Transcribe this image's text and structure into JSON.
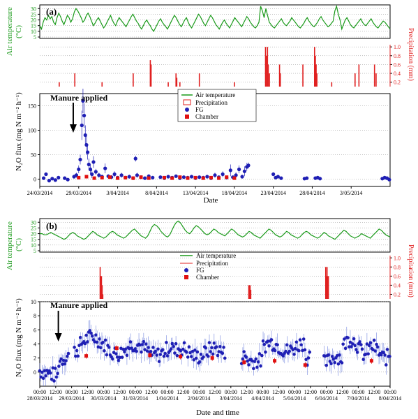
{
  "colors": {
    "air_temperature": "#1a9a1a",
    "precipitation": "#e02020",
    "fg": "#1f1fb4",
    "chamber": "#e01010"
  },
  "chart_data": [
    {
      "panel": "(a)",
      "type": "line",
      "role": "air-temperature",
      "ylabel_line1": "Air temperature",
      "ylabel_line2": "(°C)",
      "yticks": [
        5,
        10,
        15,
        20,
        25,
        30
      ],
      "ylim": [
        5,
        32
      ],
      "x_domain_days": [
        0,
        45
      ],
      "grid": true,
      "values": [
        15,
        12,
        18,
        22,
        20,
        24,
        21,
        23,
        18,
        16,
        22,
        26,
        23,
        19,
        16,
        20,
        24,
        22,
        18,
        21,
        27,
        30,
        28,
        25,
        22,
        18,
        20,
        24,
        26,
        23,
        19,
        15,
        17,
        20,
        22,
        19,
        16,
        13,
        15,
        18,
        21,
        24,
        20,
        17,
        15,
        19,
        22,
        20,
        18,
        16,
        14,
        17,
        20,
        23,
        25,
        22,
        19,
        17,
        14,
        12,
        15,
        18,
        20,
        17,
        15,
        12,
        10,
        13,
        16,
        19,
        21,
        18,
        16,
        14,
        12,
        15,
        18,
        21,
        24,
        22,
        19,
        16,
        14,
        17,
        20,
        22,
        18,
        15,
        13,
        16,
        19,
        22,
        25,
        23,
        20,
        17,
        15,
        18,
        21,
        24,
        22,
        19,
        16,
        14,
        12,
        15,
        18,
        20,
        17,
        15,
        13,
        16,
        19,
        22,
        20,
        18,
        16,
        14,
        17,
        20,
        23,
        21,
        18,
        16,
        14,
        13,
        15,
        18,
        32,
        28,
        22,
        30,
        24,
        18,
        16,
        14,
        13,
        15,
        17,
        19,
        21,
        18,
        16,
        15,
        17,
        19,
        22,
        20,
        18,
        16,
        14,
        13,
        15,
        17,
        20,
        22,
        19,
        17,
        15,
        14,
        16,
        18,
        21,
        23,
        20,
        18,
        16,
        14,
        15,
        17,
        19,
        28,
        32,
        25,
        20,
        12,
        16,
        20,
        22,
        19,
        16,
        14,
        13,
        15,
        17,
        19,
        21,
        18,
        16,
        15,
        17,
        19,
        21,
        18,
        16,
        14,
        13,
        15,
        17,
        19,
        18,
        16,
        14,
        12
      ]
    },
    {
      "panel": "(a)",
      "type": "bar",
      "role": "precipitation",
      "ylabel": "Precipitation (mm)",
      "yticks": [
        0.2,
        0.4,
        0.6,
        0.8,
        1.0
      ],
      "ylim": [
        0.1,
        1.05
      ],
      "x_domain_days": [
        0,
        45
      ],
      "grid": true,
      "events": [
        {
          "x": 2.5,
          "y": 0.2
        },
        {
          "x": 4.5,
          "y": 0.4
        },
        {
          "x": 8.0,
          "y": 0.2
        },
        {
          "x": 12.0,
          "y": 0.4
        },
        {
          "x": 14.2,
          "y": 0.7
        },
        {
          "x": 14.3,
          "y": 0.6
        },
        {
          "x": 16.5,
          "y": 0.2
        },
        {
          "x": 17.5,
          "y": 0.4
        },
        {
          "x": 17.6,
          "y": 0.3
        },
        {
          "x": 18.0,
          "y": 0.2
        },
        {
          "x": 20.5,
          "y": 0.4
        },
        {
          "x": 25.0,
          "y": 0.2
        },
        {
          "x": 29.0,
          "y": 1.0
        },
        {
          "x": 29.1,
          "y": 0.8
        },
        {
          "x": 29.25,
          "y": 1.0
        },
        {
          "x": 29.35,
          "y": 0.6
        },
        {
          "x": 29.5,
          "y": 0.4
        },
        {
          "x": 30.8,
          "y": 0.6
        },
        {
          "x": 30.9,
          "y": 0.4
        },
        {
          "x": 33.8,
          "y": 0.6
        },
        {
          "x": 35.3,
          "y": 1.0
        },
        {
          "x": 35.4,
          "y": 0.8
        },
        {
          "x": 35.5,
          "y": 0.6
        },
        {
          "x": 35.6,
          "y": 0.4
        },
        {
          "x": 37.5,
          "y": 0.2
        },
        {
          "x": 40.5,
          "y": 0.4
        },
        {
          "x": 41.0,
          "y": 0.6
        },
        {
          "x": 43.0,
          "y": 0.6
        },
        {
          "x": 43.2,
          "y": 0.4
        }
      ]
    },
    {
      "panel": "(a)",
      "type": "scatter",
      "role": "n2o-flux",
      "title_panel": "(a)",
      "annotation": "Manure applied",
      "annotation_x": 4.3,
      "xlabel": "Date",
      "ylabel": "N₂O flux (mg N m⁻² h⁻¹)",
      "xticks": [
        0,
        5,
        10,
        15,
        20,
        25,
        30,
        35,
        40
      ],
      "xticklabels": [
        "24/03/2014",
        "29/03/2014",
        "3/04/2014",
        "8/04/2014",
        "13/04/2014",
        "18/04/2014",
        "23/04/2014",
        "28/04/2014",
        "3/05/2014"
      ],
      "yticks": [
        0,
        50,
        100,
        150
      ],
      "ylim": [
        -15,
        175
      ],
      "x_domain_days": [
        0,
        45
      ],
      "grid": true,
      "legend": {
        "placement": "top-center",
        "entries": [
          "Air temperature",
          "Precipitation",
          "FG",
          "Chamber"
        ]
      },
      "fg_points": [
        {
          "x": 0.5,
          "y": 2,
          "e": 3
        },
        {
          "x": 0.8,
          "y": 10,
          "e": 3
        },
        {
          "x": 1.2,
          "y": -3,
          "e": 2
        },
        {
          "x": 1.6,
          "y": 1,
          "e": 2
        },
        {
          "x": 2.0,
          "y": -2,
          "e": 2
        },
        {
          "x": 2.4,
          "y": 3,
          "e": 2
        },
        {
          "x": 3.2,
          "y": 2,
          "e": 2
        },
        {
          "x": 3.6,
          "y": -1,
          "e": 2
        },
        {
          "x": 4.4,
          "y": 5,
          "e": 4
        },
        {
          "x": 4.7,
          "y": 8,
          "e": 5
        },
        {
          "x": 5.0,
          "y": 20,
          "e": 8
        },
        {
          "x": 5.2,
          "y": 40,
          "e": 10
        },
        {
          "x": 5.4,
          "y": 110,
          "e": 30
        },
        {
          "x": 5.55,
          "y": 160,
          "e": 25
        },
        {
          "x": 5.7,
          "y": 130,
          "e": 25
        },
        {
          "x": 5.85,
          "y": 90,
          "e": 20
        },
        {
          "x": 6.0,
          "y": 70,
          "e": 20
        },
        {
          "x": 6.15,
          "y": 55,
          "e": 15
        },
        {
          "x": 6.3,
          "y": 30,
          "e": 12
        },
        {
          "x": 6.5,
          "y": 20,
          "e": 10
        },
        {
          "x": 6.7,
          "y": 10,
          "e": 8
        },
        {
          "x": 6.9,
          "y": 35,
          "e": 12
        },
        {
          "x": 7.2,
          "y": 15,
          "e": 6
        },
        {
          "x": 7.6,
          "y": 8,
          "e": 5
        },
        {
          "x": 8.0,
          "y": 5,
          "e": 4
        },
        {
          "x": 8.4,
          "y": 22,
          "e": 10
        },
        {
          "x": 8.8,
          "y": 6,
          "e": 4
        },
        {
          "x": 9.2,
          "y": 4,
          "e": 4
        },
        {
          "x": 9.6,
          "y": 10,
          "e": 6
        },
        {
          "x": 10.0,
          "y": 3,
          "e": 3
        },
        {
          "x": 10.5,
          "y": 8,
          "e": 5
        },
        {
          "x": 11.0,
          "y": 3,
          "e": 3
        },
        {
          "x": 11.5,
          "y": 5,
          "e": 4
        },
        {
          "x": 12.0,
          "y": 2,
          "e": 3
        },
        {
          "x": 12.3,
          "y": 42,
          "e": 6
        },
        {
          "x": 12.5,
          "y": 8,
          "e": 5
        },
        {
          "x": 13.0,
          "y": 4,
          "e": 3
        },
        {
          "x": 13.5,
          "y": 2,
          "e": 3
        },
        {
          "x": 14.0,
          "y": 6,
          "e": 4
        },
        {
          "x": 14.5,
          "y": 3,
          "e": 3
        },
        {
          "x": 15.5,
          "y": 4,
          "e": 3
        },
        {
          "x": 16.0,
          "y": 2,
          "e": 3
        },
        {
          "x": 16.5,
          "y": 5,
          "e": 3
        },
        {
          "x": 17.0,
          "y": 3,
          "e": 3
        },
        {
          "x": 17.5,
          "y": 6,
          "e": 3
        },
        {
          "x": 18.0,
          "y": 2,
          "e": 3
        },
        {
          "x": 18.5,
          "y": 4,
          "e": 3
        },
        {
          "x": 19.0,
          "y": 3,
          "e": 3
        },
        {
          "x": 19.5,
          "y": 5,
          "e": 3
        },
        {
          "x": 20.0,
          "y": 2,
          "e": 3
        },
        {
          "x": 20.5,
          "y": 4,
          "e": 3
        },
        {
          "x": 21.0,
          "y": 3,
          "e": 3
        },
        {
          "x": 21.5,
          "y": 5,
          "e": 3
        },
        {
          "x": 22.0,
          "y": 2,
          "e": 3
        },
        {
          "x": 22.5,
          "y": 8,
          "e": 5
        },
        {
          "x": 23.0,
          "y": 4,
          "e": 3
        },
        {
          "x": 23.5,
          "y": 10,
          "e": 6
        },
        {
          "x": 24.0,
          "y": 3,
          "e": 3
        },
        {
          "x": 24.5,
          "y": 18,
          "e": 12
        },
        {
          "x": 24.8,
          "y": 4,
          "e": 3
        },
        {
          "x": 25.2,
          "y": 8,
          "e": 6
        },
        {
          "x": 25.6,
          "y": 20,
          "e": 8
        },
        {
          "x": 26.0,
          "y": 5,
          "e": 4
        },
        {
          "x": 26.3,
          "y": 16,
          "e": 10
        },
        {
          "x": 26.6,
          "y": 25,
          "e": 8
        },
        {
          "x": 26.8,
          "y": 28,
          "e": 6
        },
        {
          "x": 30.0,
          "y": 10,
          "e": 4
        },
        {
          "x": 30.3,
          "y": 3,
          "e": 3
        },
        {
          "x": 30.6,
          "y": 5,
          "e": 3
        },
        {
          "x": 31.0,
          "y": 2,
          "e": 2
        },
        {
          "x": 34.0,
          "y": 1,
          "e": 2
        },
        {
          "x": 34.3,
          "y": 2,
          "e": 2
        },
        {
          "x": 35.4,
          "y": 2,
          "e": 2
        },
        {
          "x": 35.7,
          "y": 3,
          "e": 2
        },
        {
          "x": 36.0,
          "y": 1,
          "e": 2
        },
        {
          "x": 44.0,
          "y": 1,
          "e": 2
        },
        {
          "x": 44.3,
          "y": 3,
          "e": 2
        },
        {
          "x": 44.6,
          "y": 2,
          "e": 2
        },
        {
          "x": 44.9,
          "y": -1,
          "e": 2
        }
      ],
      "chamber_points": [
        {
          "x": 5.0,
          "y": 3
        },
        {
          "x": 6.0,
          "y": 5
        },
        {
          "x": 7.0,
          "y": 2
        },
        {
          "x": 8.0,
          "y": 3
        },
        {
          "x": 9.0,
          "y": 4
        },
        {
          "x": 10.0,
          "y": 2
        },
        {
          "x": 11.0,
          "y": 3
        },
        {
          "x": 12.0,
          "y": 2
        },
        {
          "x": 13.0,
          "y": 4
        },
        {
          "x": 14.0,
          "y": 2
        },
        {
          "x": 16.0,
          "y": 3
        },
        {
          "x": 17.0,
          "y": 2
        },
        {
          "x": 18.0,
          "y": 4
        },
        {
          "x": 19.0,
          "y": 2
        },
        {
          "x": 20.0,
          "y": 3
        },
        {
          "x": 21.0,
          "y": 2
        },
        {
          "x": 22.0,
          "y": 3
        },
        {
          "x": 23.0,
          "y": 2
        },
        {
          "x": 24.0,
          "y": 4
        },
        {
          "x": 25.0,
          "y": 2
        }
      ]
    },
    {
      "panel": "(b)",
      "type": "line",
      "role": "air-temperature",
      "ylabel_line1": "Air temperature",
      "ylabel_line2": "(°C)",
      "yticks": [
        5,
        10,
        15,
        20,
        25,
        30
      ],
      "ylim": [
        5,
        32
      ],
      "x_domain_hours": [
        0,
        264
      ],
      "grid": true,
      "values": [
        20,
        20,
        19,
        19,
        20,
        21,
        20,
        19,
        18,
        17,
        16,
        15,
        16,
        18,
        20,
        21,
        20,
        18,
        17,
        16,
        15,
        16,
        18,
        20,
        22,
        21,
        19,
        18,
        17,
        16,
        17,
        19,
        21,
        22,
        21,
        19,
        18,
        17,
        16,
        17,
        19,
        21,
        23,
        24,
        22,
        20,
        18,
        17,
        16,
        18,
        22,
        26,
        28,
        27,
        25,
        22,
        20,
        18,
        17,
        19,
        23,
        27,
        30,
        31,
        29,
        26,
        23,
        21,
        20,
        22,
        25,
        27,
        26,
        24,
        22,
        20,
        19,
        20,
        22,
        24,
        23,
        21,
        20,
        19,
        18,
        20,
        22,
        24,
        23,
        21,
        19,
        18,
        17,
        18,
        20,
        22,
        21,
        19,
        18,
        17,
        16,
        18,
        20,
        22,
        24,
        23,
        21,
        19,
        18,
        17,
        18,
        20,
        22,
        21,
        19,
        18,
        17,
        16,
        17,
        19,
        21,
        22,
        21,
        19,
        18,
        17,
        16,
        17,
        19,
        21,
        20,
        18,
        17,
        16,
        15,
        17,
        19,
        21,
        23,
        22,
        20,
        18,
        17,
        16,
        17,
        18,
        20,
        19,
        18,
        17,
        16,
        18,
        20,
        22,
        24,
        23,
        21,
        19,
        18,
        17
      ]
    },
    {
      "panel": "(b)",
      "type": "bar",
      "role": "precipitation",
      "ylabel": "Precipitation (mm)",
      "yticks": [
        0.2,
        0.4,
        0.6,
        0.8,
        1.0
      ],
      "ylim": [
        0.1,
        1.05
      ],
      "x_domain_hours": [
        0,
        264
      ],
      "grid": true,
      "events": [
        {
          "x": 45.5,
          "y": 0.8
        },
        {
          "x": 46.0,
          "y": 0.6
        },
        {
          "x": 46.5,
          "y": 0.6
        },
        {
          "x": 47.0,
          "y": 0.4
        },
        {
          "x": 47.5,
          "y": 0.2
        },
        {
          "x": 157.5,
          "y": 0.4
        },
        {
          "x": 158.0,
          "y": 0.4
        },
        {
          "x": 158.5,
          "y": 0.4
        },
        {
          "x": 159.0,
          "y": 0.3
        },
        {
          "x": 215.5,
          "y": 0.8
        },
        {
          "x": 216.0,
          "y": 0.6
        },
        {
          "x": 216.5,
          "y": 0.8
        },
        {
          "x": 217.0,
          "y": 0.6
        },
        {
          "x": 217.5,
          "y": 0.6
        }
      ]
    },
    {
      "panel": "(b)",
      "type": "scatter",
      "role": "n2o-flux",
      "title_panel": "(b)",
      "annotation": "Manure applied",
      "annotation_x": 14,
      "xlabel": "Date and time",
      "ylabel": "N₂O flux (mg N m⁻² h⁻¹)",
      "xticks": [
        0,
        12,
        24,
        36,
        48,
        60,
        72,
        84,
        96,
        108,
        120,
        132,
        144,
        156,
        168,
        180,
        192,
        204,
        216,
        228,
        240,
        252,
        264
      ],
      "xticklabels_time": [
        "00:00",
        "12:00",
        "00:00",
        "12:00",
        "00:00",
        "12:00",
        "00:00",
        "12:00",
        "00:00",
        "12:00",
        "00:00",
        "12:00",
        "00:00",
        "12:00",
        "00:00",
        "12:00",
        "00:00",
        "12:00",
        "00:00",
        "12:00",
        "00:00",
        "12:00",
        "00:00"
      ],
      "xticklabels_date": [
        "28/03/2014",
        "",
        "29/03/2014",
        "",
        "30/03/2014",
        "",
        "31/03/2014",
        "",
        "1/04/2014",
        "",
        "2/04/2014",
        "",
        "3/04/2014",
        "",
        "4/04/2014",
        "",
        "5/04/2014",
        "",
        "6/04/2014",
        "",
        "7/04/2014",
        "",
        "8/04/2014"
      ],
      "yticks": [
        0,
        2,
        4,
        6,
        8,
        10
      ],
      "ylim": [
        -2,
        10
      ],
      "x_domain_hours": [
        0,
        264
      ],
      "grid": true,
      "legend": {
        "placement": "top-left",
        "entries": [
          "Air temperature",
          "Precipitation",
          "FG",
          "Chamber"
        ]
      },
      "chamber_points": [
        {
          "x": 35,
          "y": 2.3
        },
        {
          "x": 58,
          "y": 3.4
        },
        {
          "x": 83,
          "y": 2.4
        },
        {
          "x": 106,
          "y": 2.2
        },
        {
          "x": 130,
          "y": 2.0
        },
        {
          "x": 154,
          "y": 1.4
        },
        {
          "x": 177,
          "y": 1.6
        },
        {
          "x": 200,
          "y": 1.0
        },
        {
          "x": 250,
          "y": 1.6
        }
      ],
      "fg_points": []
    }
  ]
}
